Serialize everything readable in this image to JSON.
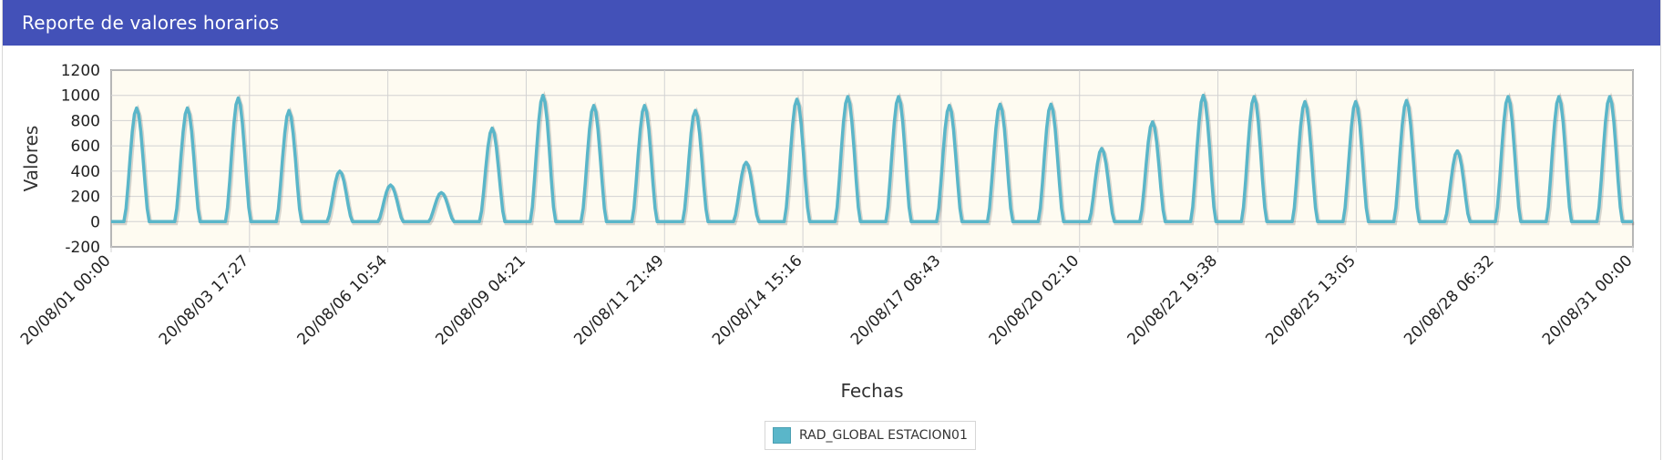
{
  "panel": {
    "title": "Reporte de valores horarios"
  },
  "chart_data": {
    "type": "line",
    "xlabel": "Fechas",
    "ylabel": "Valores",
    "ylim": [
      -200,
      1200
    ],
    "yticks": [
      "1200",
      "1000",
      "800",
      "600",
      "400",
      "200",
      "0",
      "-200"
    ],
    "xticks": [
      "20/08/01 00:00",
      "20/08/03 17:27",
      "20/08/06 10:54",
      "20/08/09 04:21",
      "20/08/11 21:49",
      "20/08/14 15:16",
      "20/08/17 08:43",
      "20/08/20 02:10",
      "20/08/22 19:38",
      "20/08/25 13:05",
      "20/08/28 06:32",
      "20/08/31 00:00"
    ],
    "x_range": [
      "2020-08-01 00:00",
      "2020-08-31 00:00"
    ],
    "grid": true,
    "legend_position": "bottom-center",
    "series_color": "#5ab6c9",
    "series": [
      {
        "name": "RAD_GLOBAL ESTACION01",
        "daily_peaks": [
          900,
          900,
          980,
          880,
          400,
          290,
          230,
          740,
          1000,
          920,
          920,
          880,
          470,
          970,
          990,
          990,
          920,
          930,
          930,
          580,
          790,
          1000,
          990,
          950,
          950,
          960,
          560,
          990,
          990,
          990
        ]
      }
    ]
  },
  "legend": {
    "label": "RAD_GLOBAL ESTACION01"
  }
}
